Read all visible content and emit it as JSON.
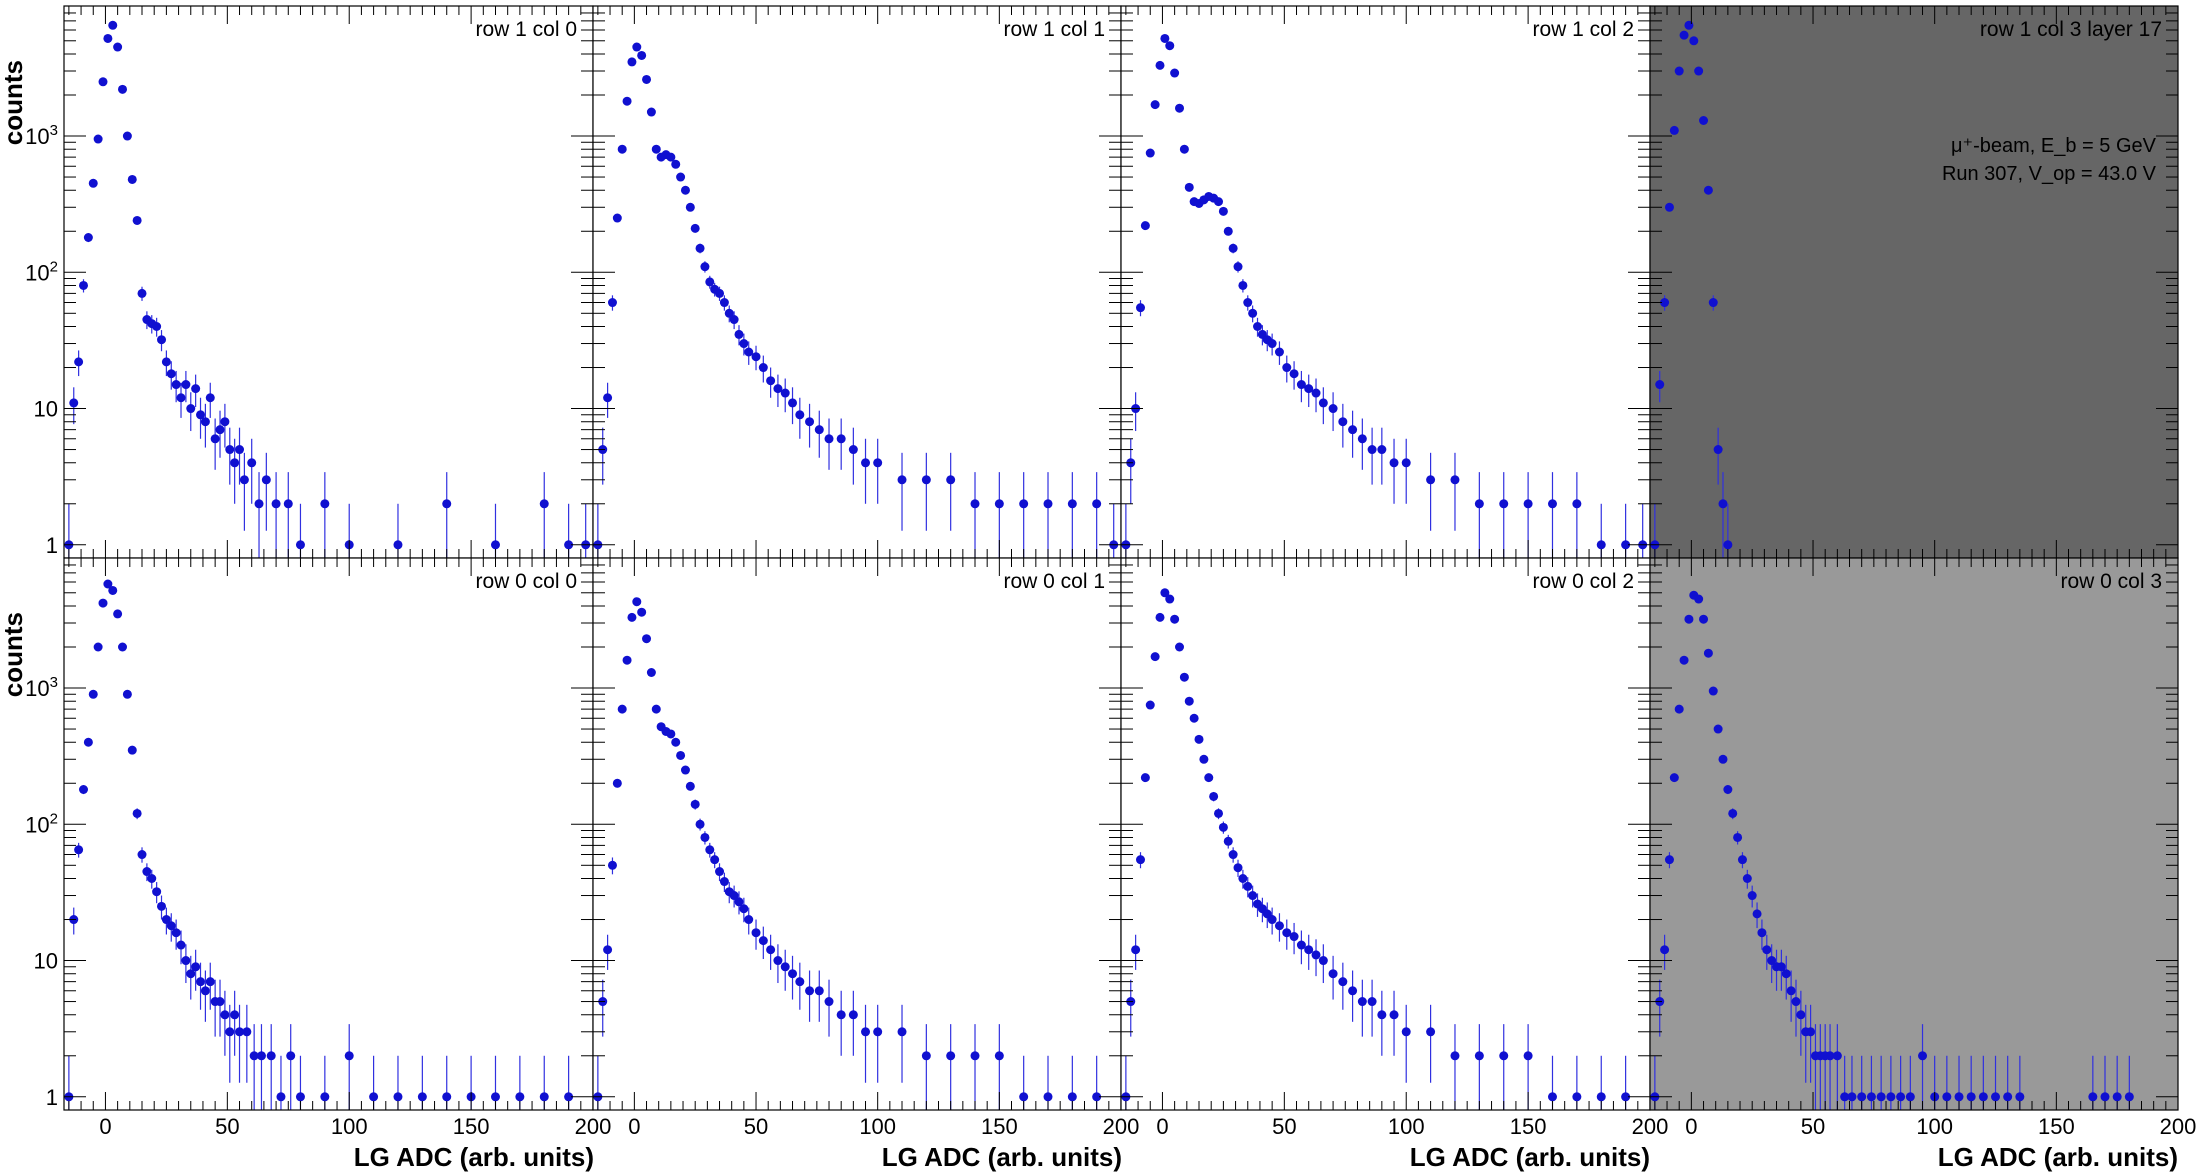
{
  "figure": {
    "ylabel": "counts",
    "xlabel": "LG ADC (arb. units)",
    "beam_text": "μ⁺-beam, E_b = 5 GeV",
    "run_text": "Run 307, V_op = 43.0 V"
  },
  "colors": {
    "marker": "#1010d0",
    "errorbar": "#3030e0",
    "pad_white": "#ffffff",
    "pad_dark": "#666666",
    "pad_gray": "#999999",
    "axis": "#000000"
  },
  "chart_data": [
    {
      "type": "scatter",
      "title": "row 1 col 0",
      "background": "white",
      "xlim": [
        -17,
        200
      ],
      "ylim": [
        0.8,
        9000
      ],
      "yscale": "log",
      "x": [
        -15,
        -13,
        -11,
        -9,
        -7,
        -5,
        -3,
        -1,
        1,
        3,
        5,
        7,
        9,
        11,
        13,
        15,
        17,
        19,
        21,
        23,
        25,
        27,
        29,
        31,
        33,
        35,
        37,
        39,
        41,
        43,
        45,
        47,
        49,
        51,
        53,
        55,
        57,
        60,
        63,
        66,
        70,
        75,
        80,
        90,
        100,
        120,
        140,
        160,
        180,
        190,
        197
      ],
      "y": [
        1,
        11,
        22,
        80,
        180,
        450,
        950,
        2500,
        5200,
        6500,
        4500,
        2200,
        1000,
        480,
        240,
        70,
        45,
        42,
        40,
        32,
        22,
        18,
        15,
        12,
        15,
        10,
        14,
        9,
        8,
        12,
        6,
        7,
        8,
        5,
        4,
        5,
        3,
        4,
        2,
        3,
        2,
        2,
        1,
        2,
        1,
        1,
        2,
        1,
        2,
        1,
        1
      ]
    },
    {
      "type": "scatter",
      "title": "row 1 col 1",
      "background": "white",
      "xlim": [
        -17,
        200
      ],
      "ylim": [
        0.8,
        9000
      ],
      "yscale": "log",
      "x": [
        -15,
        -13,
        -11,
        -9,
        -7,
        -5,
        -3,
        -1,
        1,
        3,
        5,
        7,
        9,
        11,
        13,
        15,
        17,
        19,
        21,
        23,
        25,
        27,
        29,
        31,
        33,
        35,
        37,
        39,
        41,
        43,
        45,
        47,
        50,
        53,
        56,
        59,
        62,
        65,
        68,
        72,
        76,
        80,
        85,
        90,
        95,
        100,
        110,
        120,
        130,
        140,
        150,
        160,
        170,
        180,
        190,
        197
      ],
      "y": [
        1,
        5,
        12,
        60,
        250,
        800,
        1800,
        3500,
        4500,
        3900,
        2600,
        1500,
        800,
        700,
        730,
        700,
        620,
        500,
        400,
        300,
        210,
        150,
        110,
        85,
        75,
        70,
        60,
        50,
        45,
        35,
        30,
        26,
        24,
        20,
        16,
        14,
        13,
        11,
        9,
        8,
        7,
        6,
        6,
        5,
        4,
        4,
        3,
        3,
        3,
        2,
        2,
        2,
        2,
        2,
        2,
        1
      ]
    },
    {
      "type": "scatter",
      "title": "row 1 col 2",
      "background": "white",
      "xlim": [
        -17,
        200
      ],
      "ylim": [
        0.8,
        9000
      ],
      "yscale": "log",
      "x": [
        -15,
        -13,
        -11,
        -9,
        -7,
        -5,
        -3,
        -1,
        1,
        3,
        5,
        7,
        9,
        11,
        13,
        15,
        17,
        19,
        21,
        23,
        25,
        27,
        29,
        31,
        33,
        35,
        37,
        39,
        41,
        43,
        45,
        48,
        51,
        54,
        57,
        60,
        63,
        66,
        70,
        74,
        78,
        82,
        86,
        90,
        95,
        100,
        110,
        120,
        130,
        140,
        150,
        160,
        170,
        180,
        190,
        197
      ],
      "y": [
        1,
        4,
        10,
        55,
        220,
        750,
        1700,
        3300,
        5200,
        4600,
        2900,
        1600,
        800,
        420,
        330,
        320,
        340,
        360,
        350,
        330,
        280,
        200,
        150,
        110,
        80,
        60,
        50,
        40,
        35,
        32,
        30,
        26,
        20,
        18,
        15,
        14,
        13,
        11,
        10,
        8,
        7,
        6,
        5,
        5,
        4,
        4,
        3,
        3,
        2,
        2,
        2,
        2,
        2,
        1,
        1,
        1
      ]
    },
    {
      "type": "scatter",
      "title": "row 1 col 3 layer 17",
      "background": "dark",
      "xlim": [
        -17,
        200
      ],
      "ylim": [
        0.8,
        9000
      ],
      "yscale": "log",
      "x": [
        -15,
        -13,
        -11,
        -9,
        -7,
        -5,
        -3,
        -1,
        1,
        3,
        5,
        7,
        9,
        11,
        13,
        15
      ],
      "y": [
        1,
        15,
        60,
        300,
        1100,
        3000,
        5500,
        6500,
        5000,
        3000,
        1300,
        400,
        60,
        5,
        2,
        1
      ]
    },
    {
      "type": "scatter",
      "title": "row 0 col 0",
      "background": "white",
      "xlim": [
        -17,
        200
      ],
      "ylim": [
        0.8,
        9000
      ],
      "yscale": "log",
      "x": [
        -15,
        -13,
        -11,
        -9,
        -7,
        -5,
        -3,
        -1,
        1,
        3,
        5,
        7,
        9,
        11,
        13,
        15,
        17,
        19,
        21,
        23,
        25,
        27,
        29,
        31,
        33,
        35,
        37,
        39,
        41,
        43,
        45,
        47,
        49,
        51,
        53,
        55,
        58,
        61,
        64,
        68,
        72,
        76,
        80,
        90,
        100,
        110,
        120,
        130,
        140,
        150,
        160,
        170,
        180,
        190
      ],
      "y": [
        1,
        20,
        65,
        180,
        400,
        900,
        2000,
        4200,
        5800,
        5200,
        3500,
        2000,
        900,
        350,
        120,
        60,
        45,
        40,
        32,
        25,
        20,
        18,
        16,
        13,
        10,
        8,
        9,
        7,
        6,
        7,
        5,
        5,
        4,
        3,
        4,
        3,
        3,
        2,
        2,
        2,
        1,
        2,
        1,
        1,
        2,
        1,
        1,
        1,
        1,
        1,
        1,
        1,
        1,
        1
      ]
    },
    {
      "type": "scatter",
      "title": "row 0 col 1",
      "background": "white",
      "xlim": [
        -17,
        200
      ],
      "ylim": [
        0.8,
        9000
      ],
      "yscale": "log",
      "x": [
        -15,
        -13,
        -11,
        -9,
        -7,
        -5,
        -3,
        -1,
        1,
        3,
        5,
        7,
        9,
        11,
        13,
        15,
        17,
        19,
        21,
        23,
        25,
        27,
        29,
        31,
        33,
        35,
        37,
        39,
        41,
        43,
        45,
        47,
        50,
        53,
        56,
        59,
        62,
        65,
        68,
        72,
        76,
        80,
        85,
        90,
        95,
        100,
        110,
        120,
        130,
        140,
        150,
        160,
        170,
        180,
        190
      ],
      "y": [
        1,
        5,
        12,
        50,
        200,
        700,
        1600,
        3300,
        4300,
        3600,
        2300,
        1300,
        700,
        520,
        480,
        460,
        400,
        320,
        250,
        190,
        140,
        100,
        80,
        65,
        55,
        45,
        38,
        32,
        30,
        27,
        24,
        20,
        16,
        14,
        12,
        10,
        9,
        8,
        7,
        6,
        6,
        5,
        4,
        4,
        3,
        3,
        3,
        2,
        2,
        2,
        2,
        1,
        1,
        1,
        1
      ]
    },
    {
      "type": "scatter",
      "title": "row 0 col 2",
      "background": "white",
      "xlim": [
        -17,
        200
      ],
      "ylim": [
        0.8,
        9000
      ],
      "yscale": "log",
      "x": [
        -15,
        -13,
        -11,
        -9,
        -7,
        -5,
        -3,
        -1,
        1,
        3,
        5,
        7,
        9,
        11,
        13,
        15,
        17,
        19,
        21,
        23,
        25,
        27,
        29,
        31,
        33,
        35,
        37,
        39,
        41,
        43,
        45,
        48,
        51,
        54,
        57,
        60,
        63,
        66,
        70,
        74,
        78,
        82,
        86,
        90,
        95,
        100,
        110,
        120,
        130,
        140,
        150,
        160,
        170,
        180,
        190
      ],
      "y": [
        1,
        5,
        12,
        55,
        220,
        750,
        1700,
        3300,
        5000,
        4500,
        3200,
        2000,
        1200,
        800,
        600,
        420,
        300,
        220,
        160,
        120,
        95,
        75,
        60,
        48,
        40,
        35,
        30,
        26,
        24,
        22,
        20,
        18,
        16,
        15,
        13,
        12,
        11,
        10,
        8,
        7,
        6,
        5,
        5,
        4,
        4,
        3,
        3,
        2,
        2,
        2,
        2,
        1,
        1,
        1,
        1
      ]
    },
    {
      "type": "scatter",
      "title": "row 0 col 3",
      "background": "gray",
      "xlim": [
        -17,
        200
      ],
      "ylim": [
        0.8,
        9000
      ],
      "yscale": "log",
      "x": [
        -15,
        -13,
        -11,
        -9,
        -7,
        -5,
        -3,
        -1,
        1,
        3,
        5,
        7,
        9,
        11,
        13,
        15,
        17,
        19,
        21,
        23,
        25,
        27,
        29,
        31,
        33,
        35,
        37,
        39,
        41,
        43,
        45,
        47,
        49,
        51,
        53,
        55,
        57,
        60,
        63,
        66,
        70,
        74,
        78,
        82,
        86,
        90,
        95,
        100,
        105,
        110,
        115,
        120,
        125,
        130,
        135,
        165,
        170,
        175,
        180
      ],
      "y": [
        1,
        5,
        12,
        55,
        220,
        700,
        1600,
        3200,
        4800,
        4500,
        3200,
        1800,
        950,
        500,
        300,
        180,
        120,
        80,
        55,
        40,
        30,
        22,
        16,
        12,
        10,
        9,
        9,
        8,
        6,
        5,
        4,
        3,
        3,
        2,
        2,
        2,
        2,
        2,
        1,
        1,
        1,
        1,
        1,
        1,
        1,
        1,
        2,
        1,
        1,
        1,
        1,
        1,
        1,
        1,
        1,
        1,
        1,
        1,
        1
      ]
    }
  ]
}
